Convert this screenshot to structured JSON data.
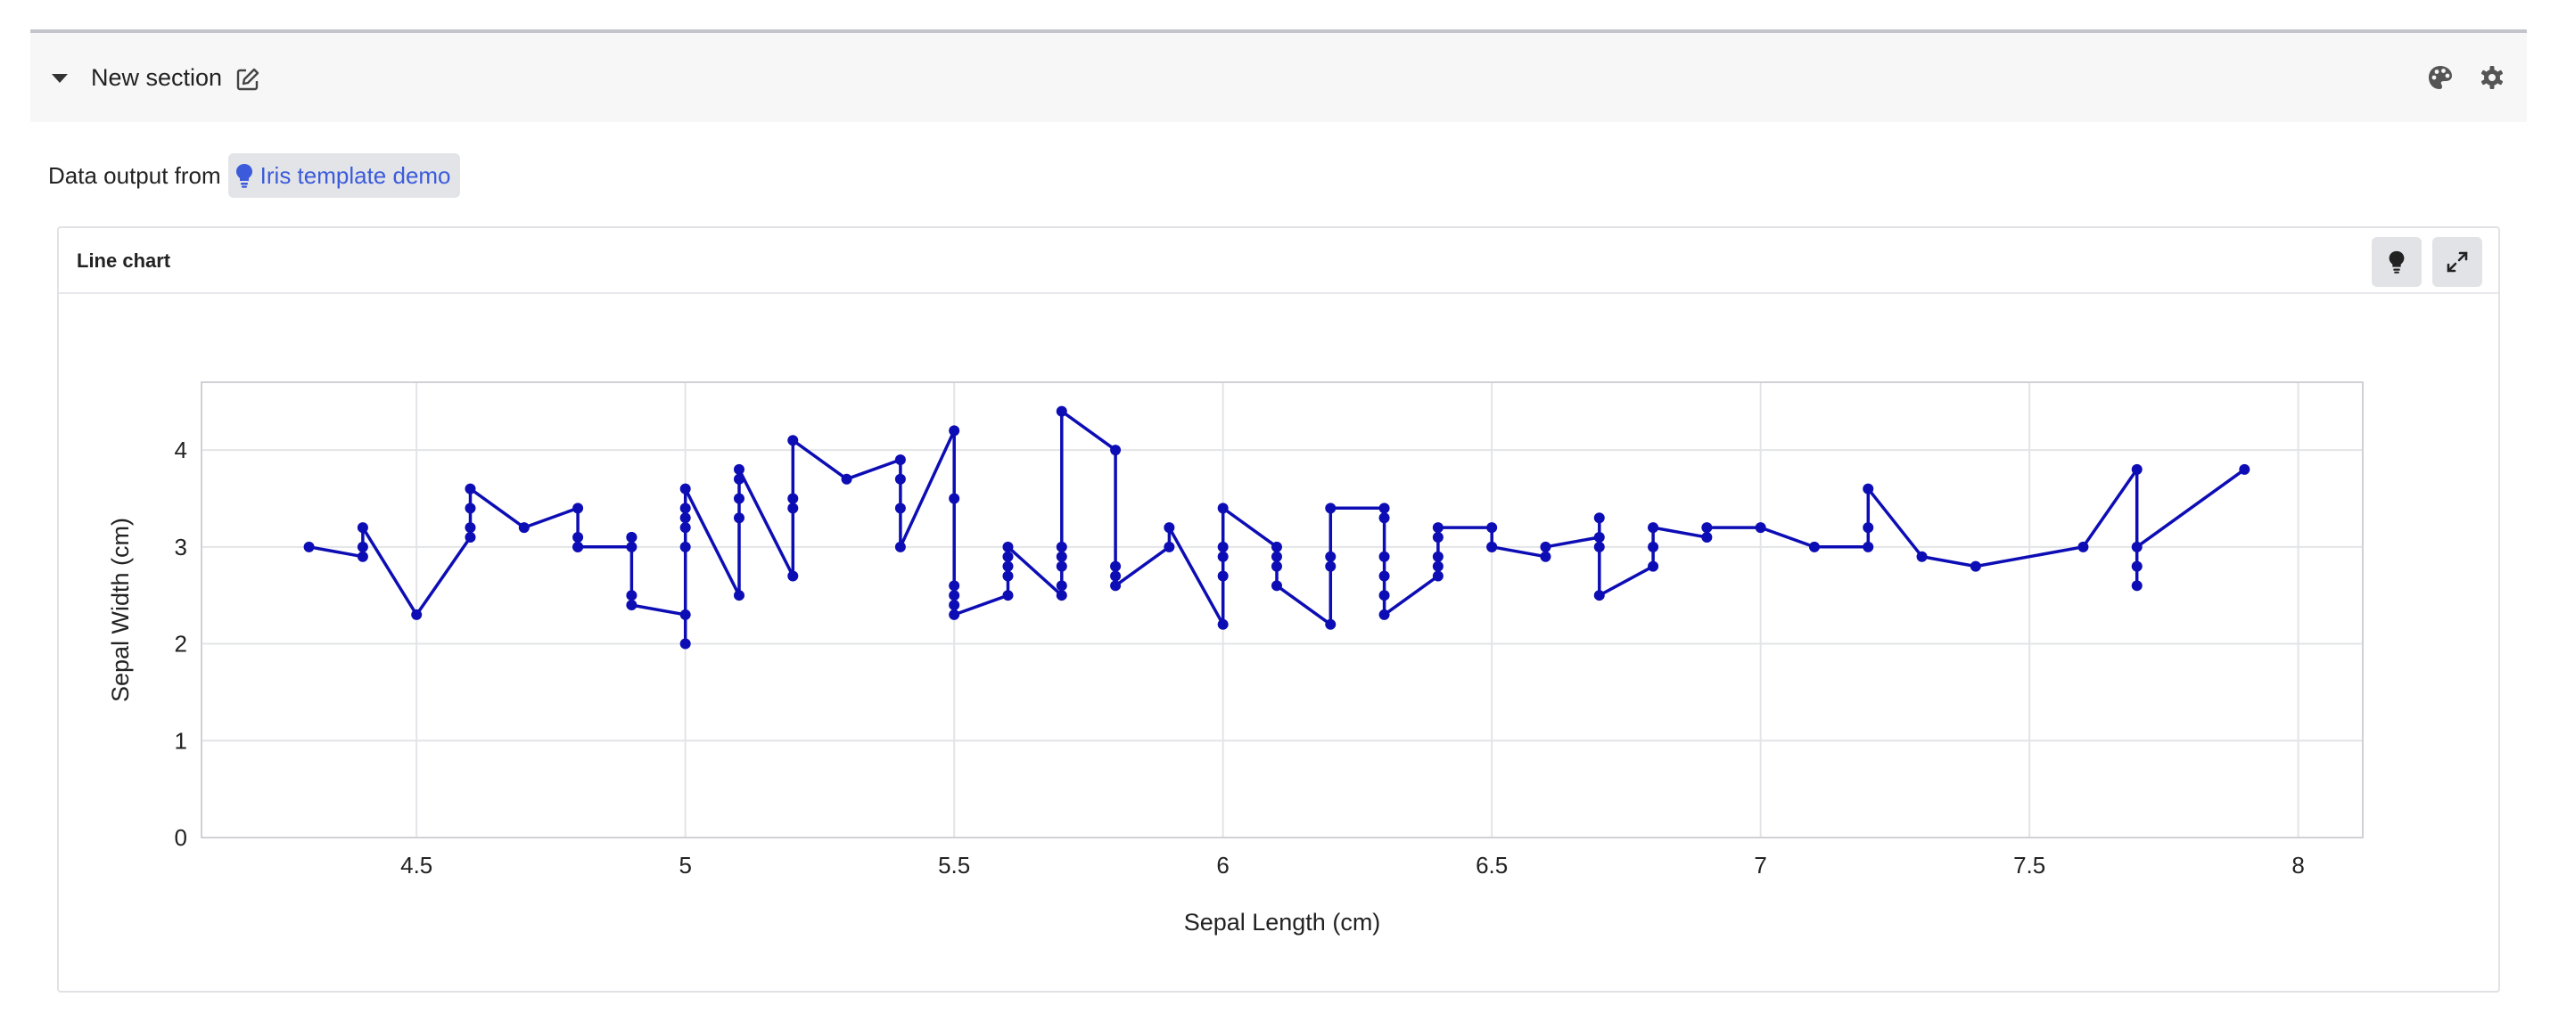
{
  "section": {
    "title": "New section"
  },
  "source": {
    "label": "Data output from",
    "link": "Iris template demo"
  },
  "card": {
    "title": "Line chart"
  },
  "icons": {
    "collapse": "caret-down-icon",
    "edit": "edit-icon",
    "palette": "palette-icon",
    "settings": "gear-icon",
    "insight": "lightbulb-icon",
    "expand": "expand-icon"
  },
  "colors": {
    "series": "#0d0db5",
    "link": "#3b5bdb",
    "header_bg": "#f7f7f8",
    "chip_bg": "#e3e4e8"
  },
  "chart_data": {
    "type": "line",
    "xlabel": "Sepal Length (cm)",
    "ylabel": "Sepal Width (cm)",
    "xlim": [
      4.1,
      8.12
    ],
    "ylim": [
      0,
      4.7
    ],
    "xticks": [
      4.5,
      5,
      5.5,
      6,
      6.5,
      7,
      7.5,
      8
    ],
    "yticks": [
      0,
      1,
      2,
      3,
      4
    ],
    "grid": true,
    "legend": "none",
    "series": [
      {
        "x": [
          4.3,
          4.4,
          4.4,
          4.4,
          4.5,
          4.6,
          4.6,
          4.6,
          4.6,
          4.7,
          4.8,
          4.8,
          4.8,
          4.8,
          4.9,
          4.9,
          4.9,
          4.9,
          4.9,
          5.0,
          5.0,
          5.0,
          5.0,
          5.0,
          5.0,
          5.0,
          5.1,
          5.1,
          5.1,
          5.1,
          5.1,
          5.2,
          5.2,
          5.2,
          5.2,
          5.3,
          5.4,
          5.4,
          5.4,
          5.4,
          5.5,
          5.5,
          5.5,
          5.5,
          5.5,
          5.5,
          5.6,
          5.6,
          5.6,
          5.6,
          5.6,
          5.7,
          5.7,
          5.7,
          5.7,
          5.7,
          5.7,
          5.8,
          5.8,
          5.8,
          5.8,
          5.9,
          5.9,
          6.0,
          6.0,
          6.0,
          6.0,
          6.0,
          6.1,
          6.1,
          6.1,
          6.1,
          6.2,
          6.2,
          6.2,
          6.2,
          6.3,
          6.3,
          6.3,
          6.3,
          6.3,
          6.3,
          6.4,
          6.4,
          6.4,
          6.4,
          6.4,
          6.5,
          6.5,
          6.5,
          6.6,
          6.6,
          6.7,
          6.7,
          6.7,
          6.7,
          6.8,
          6.8,
          6.8,
          6.9,
          6.9,
          7.0,
          7.1,
          7.2,
          7.2,
          7.2,
          7.3,
          7.4,
          7.6,
          7.7,
          7.7,
          7.7,
          7.7,
          7.9
        ],
        "y": [
          3.0,
          2.9,
          3.0,
          3.2,
          2.3,
          3.1,
          3.2,
          3.4,
          3.6,
          3.2,
          3.4,
          3.1,
          3.0,
          3.0,
          3.0,
          3.1,
          3.1,
          2.5,
          2.4,
          2.3,
          2.0,
          3.0,
          3.2,
          3.3,
          3.4,
          3.6,
          2.5,
          3.3,
          3.5,
          3.7,
          3.8,
          2.7,
          3.4,
          3.5,
          4.1,
          3.7,
          3.9,
          3.7,
          3.4,
          3.0,
          4.2,
          3.5,
          2.6,
          2.5,
          2.4,
          2.3,
          2.5,
          2.7,
          2.8,
          2.9,
          3.0,
          2.5,
          2.6,
          2.8,
          2.9,
          3.0,
          4.4,
          4.0,
          2.8,
          2.7,
          2.6,
          3.0,
          3.2,
          2.2,
          2.7,
          2.9,
          3.0,
          3.4,
          3.0,
          2.8,
          2.9,
          2.6,
          2.2,
          2.8,
          2.9,
          3.4,
          3.4,
          3.3,
          2.9,
          2.7,
          2.5,
          2.3,
          2.7,
          2.8,
          2.9,
          3.1,
          3.2,
          3.2,
          3.0,
          3.0,
          2.9,
          3.0,
          3.1,
          3.3,
          3.0,
          2.5,
          2.8,
          3.0,
          3.2,
          3.1,
          3.2,
          3.2,
          3.0,
          3.0,
          3.2,
          3.6,
          2.9,
          2.8,
          3.0,
          3.8,
          2.6,
          2.8,
          3.0,
          3.8
        ]
      }
    ]
  }
}
